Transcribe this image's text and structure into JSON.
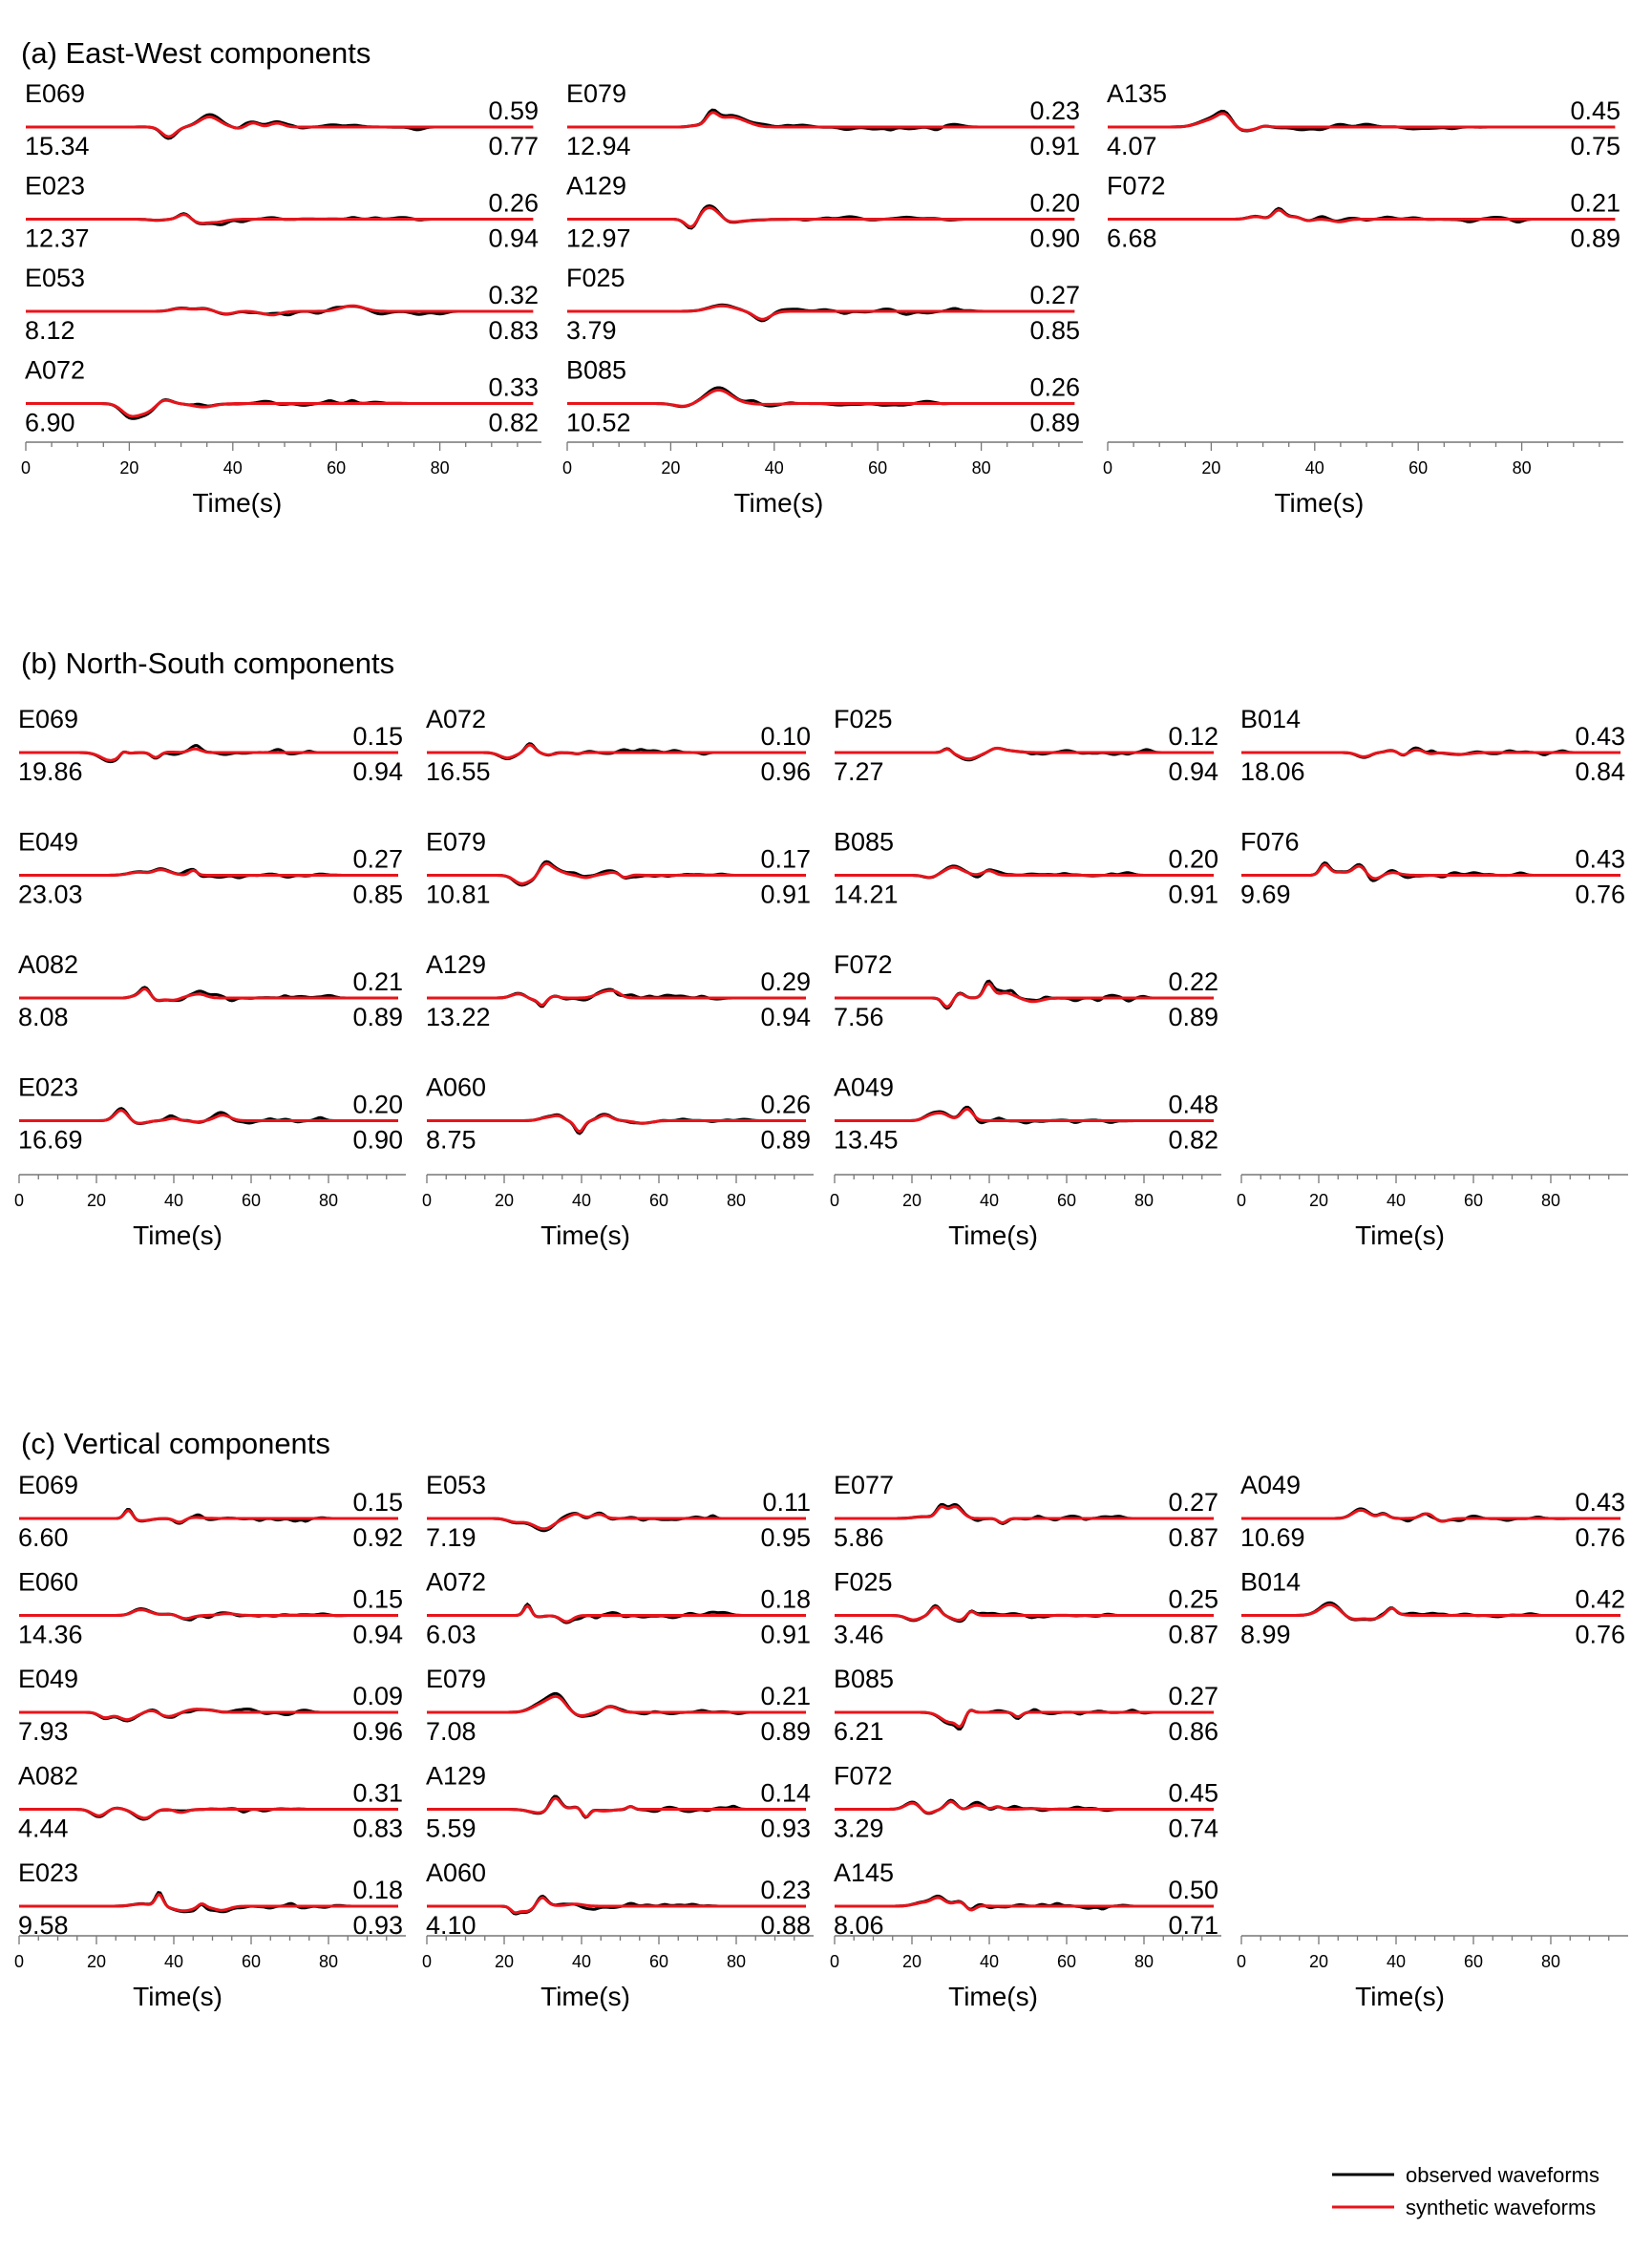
{
  "legend": {
    "observed": "observed waveforms",
    "synthetic": "synthetic waveforms",
    "observed_color": "#000000",
    "synthetic_color": "#e8141b"
  },
  "chart_data": {
    "type": "line",
    "xlabel": "Time(s)",
    "xlim": [
      0,
      100
    ],
    "xticks": [
      0,
      20,
      40,
      60,
      80
    ],
    "sections": [
      {
        "title": "(a) East-West components",
        "columns": [
          [
            {
              "station": "E069",
              "amp": "15.34",
              "top": "0.59",
              "bottom": "0.77"
            },
            {
              "station": "E023",
              "amp": "12.37",
              "top": "0.26",
              "bottom": "0.94"
            },
            {
              "station": "E053",
              "amp": "8.12",
              "top": "0.32",
              "bottom": "0.83"
            },
            {
              "station": "A072",
              "amp": "6.90",
              "top": "0.33",
              "bottom": "0.82"
            }
          ],
          [
            {
              "station": "E079",
              "amp": "12.94",
              "top": "0.23",
              "bottom": "0.91"
            },
            {
              "station": "A129",
              "amp": "12.97",
              "top": "0.20",
              "bottom": "0.90"
            },
            {
              "station": "F025",
              "amp": "3.79",
              "top": "0.27",
              "bottom": "0.85"
            },
            {
              "station": "B085",
              "amp": "10.52",
              "top": "0.26",
              "bottom": "0.89"
            }
          ],
          [
            {
              "station": "A135",
              "amp": "4.07",
              "top": "0.45",
              "bottom": "0.75"
            },
            {
              "station": "F072",
              "amp": "6.68",
              "top": "0.21",
              "bottom": "0.89"
            }
          ]
        ]
      },
      {
        "title": "(b) North-South components",
        "columns": [
          [
            {
              "station": "E069",
              "amp": "19.86",
              "top": "0.15",
              "bottom": "0.94"
            },
            {
              "station": "E049",
              "amp": "23.03",
              "top": "0.27",
              "bottom": "0.85"
            },
            {
              "station": "A082",
              "amp": "8.08",
              "top": "0.21",
              "bottom": "0.89"
            },
            {
              "station": "E023",
              "amp": "16.69",
              "top": "0.20",
              "bottom": "0.90"
            }
          ],
          [
            {
              "station": "A072",
              "amp": "16.55",
              "top": "0.10",
              "bottom": "0.96"
            },
            {
              "station": "E079",
              "amp": "10.81",
              "top": "0.17",
              "bottom": "0.91"
            },
            {
              "station": "A129",
              "amp": "13.22",
              "top": "0.29",
              "bottom": "0.94"
            },
            {
              "station": "A060",
              "amp": "8.75",
              "top": "0.26",
              "bottom": "0.89"
            }
          ],
          [
            {
              "station": "F025",
              "amp": "7.27",
              "top": "0.12",
              "bottom": "0.94"
            },
            {
              "station": "B085",
              "amp": "14.21",
              "top": "0.20",
              "bottom": "0.91"
            },
            {
              "station": "F072",
              "amp": "7.56",
              "top": "0.22",
              "bottom": "0.89"
            },
            {
              "station": "A049",
              "amp": "13.45",
              "top": "0.48",
              "bottom": "0.82"
            }
          ],
          [
            {
              "station": "B014",
              "amp": "18.06",
              "top": "0.43",
              "bottom": "0.84"
            },
            {
              "station": "F076",
              "amp": "9.69",
              "top": "0.43",
              "bottom": "0.76"
            }
          ]
        ]
      },
      {
        "title": "(c) Vertical components",
        "columns": [
          [
            {
              "station": "E069",
              "amp": "6.60",
              "top": "0.15",
              "bottom": "0.92"
            },
            {
              "station": "E060",
              "amp": "14.36",
              "top": "0.15",
              "bottom": "0.94"
            },
            {
              "station": "E049",
              "amp": "7.93",
              "top": "0.09",
              "bottom": "0.96"
            },
            {
              "station": "A082",
              "amp": "4.44",
              "top": "0.31",
              "bottom": "0.83"
            },
            {
              "station": "E023",
              "amp": "9.58",
              "top": "0.18",
              "bottom": "0.93"
            }
          ],
          [
            {
              "station": "E053",
              "amp": "7.19",
              "top": "0.11",
              "bottom": "0.95"
            },
            {
              "station": "A072",
              "amp": "6.03",
              "top": "0.18",
              "bottom": "0.91"
            },
            {
              "station": "E079",
              "amp": "7.08",
              "top": "0.21",
              "bottom": "0.89"
            },
            {
              "station": "A129",
              "amp": "5.59",
              "top": "0.14",
              "bottom": "0.93"
            },
            {
              "station": "A060",
              "amp": "4.10",
              "top": "0.23",
              "bottom": "0.88"
            }
          ],
          [
            {
              "station": "E077",
              "amp": "5.86",
              "top": "0.27",
              "bottom": "0.87"
            },
            {
              "station": "F025",
              "amp": "3.46",
              "top": "0.25",
              "bottom": "0.87"
            },
            {
              "station": "B085",
              "amp": "6.21",
              "top": "0.27",
              "bottom": "0.86"
            },
            {
              "station": "F072",
              "amp": "3.29",
              "top": "0.45",
              "bottom": "0.74"
            },
            {
              "station": "A145",
              "amp": "8.06",
              "top": "0.50",
              "bottom": "0.71"
            }
          ],
          [
            {
              "station": "A049",
              "amp": "10.69",
              "top": "0.43",
              "bottom": "0.76"
            },
            {
              "station": "B014",
              "amp": "8.99",
              "top": "0.42",
              "bottom": "0.76"
            }
          ]
        ]
      }
    ]
  }
}
